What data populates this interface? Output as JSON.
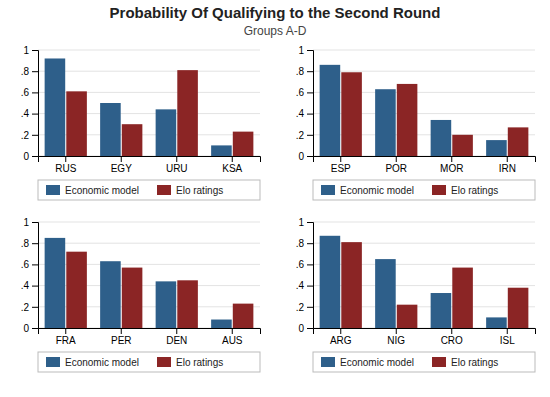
{
  "chart_data": [
    {
      "type": "bar",
      "title": "Probability Of Qualifying to the Second Round",
      "subtitle": "Groups A-D",
      "categories": [
        "RUS",
        "EGY",
        "URU",
        "KSA"
      ],
      "series": [
        {
          "name": "Economic model",
          "color": "#2e5f8a",
          "values": [
            0.92,
            0.5,
            0.44,
            0.1
          ]
        },
        {
          "name": "Elo ratings",
          "color": "#8b2525",
          "values": [
            0.61,
            0.3,
            0.81,
            0.23
          ]
        }
      ],
      "ylim": [
        0,
        1.0
      ],
      "yticks": [
        0,
        {
          "value": 0.2,
          "label": ".2"
        },
        {
          "value": 0.4,
          "label": ".4"
        },
        {
          "value": 0.6,
          "label": ".6"
        },
        {
          "value": 0.8,
          "label": ".8"
        },
        1
      ],
      "grid": true,
      "legend": "bottom"
    },
    {
      "type": "bar",
      "categories": [
        "ESP",
        "POR",
        "MOR",
        "IRN"
      ],
      "series": [
        {
          "name": "Economic model",
          "color": "#2e5f8a",
          "values": [
            0.86,
            0.63,
            0.34,
            0.15
          ]
        },
        {
          "name": "Elo ratings",
          "color": "#8b2525",
          "values": [
            0.79,
            0.68,
            0.2,
            0.27
          ]
        }
      ],
      "ylim": [
        0,
        1.0
      ],
      "yticks": [
        0,
        {
          "value": 0.2,
          "label": ".2"
        },
        {
          "value": 0.4,
          "label": ".4"
        },
        {
          "value": 0.6,
          "label": ".6"
        },
        {
          "value": 0.8,
          "label": ".8"
        },
        1
      ],
      "grid": true,
      "legend": "bottom"
    },
    {
      "type": "bar",
      "categories": [
        "FRA",
        "PER",
        "DEN",
        "AUS"
      ],
      "series": [
        {
          "name": "Economic model",
          "color": "#2e5f8a",
          "values": [
            0.85,
            0.63,
            0.44,
            0.08
          ]
        },
        {
          "name": "Elo ratings",
          "color": "#8b2525",
          "values": [
            0.72,
            0.57,
            0.45,
            0.23
          ]
        }
      ],
      "ylim": [
        0,
        1.0
      ],
      "yticks": [
        0,
        {
          "value": 0.2,
          "label": ".2"
        },
        {
          "value": 0.4,
          "label": ".4"
        },
        {
          "value": 0.6,
          "label": ".6"
        },
        {
          "value": 0.8,
          "label": ".8"
        },
        1
      ],
      "grid": true,
      "legend": "bottom"
    },
    {
      "type": "bar",
      "categories": [
        "ARG",
        "NIG",
        "CRO",
        "ISL"
      ],
      "series": [
        {
          "name": "Economic model",
          "color": "#2e5f8a",
          "values": [
            0.87,
            0.65,
            0.33,
            0.1
          ]
        },
        {
          "name": "Elo ratings",
          "color": "#8b2525",
          "values": [
            0.81,
            0.22,
            0.57,
            0.38
          ]
        }
      ],
      "ylim": [
        0,
        1.0
      ],
      "yticks": [
        0,
        {
          "value": 0.2,
          "label": ".2"
        },
        {
          "value": 0.4,
          "label": ".4"
        },
        {
          "value": 0.6,
          "label": ".6"
        },
        {
          "value": 0.8,
          "label": ".8"
        },
        1
      ],
      "grid": true,
      "legend": "bottom"
    }
  ]
}
